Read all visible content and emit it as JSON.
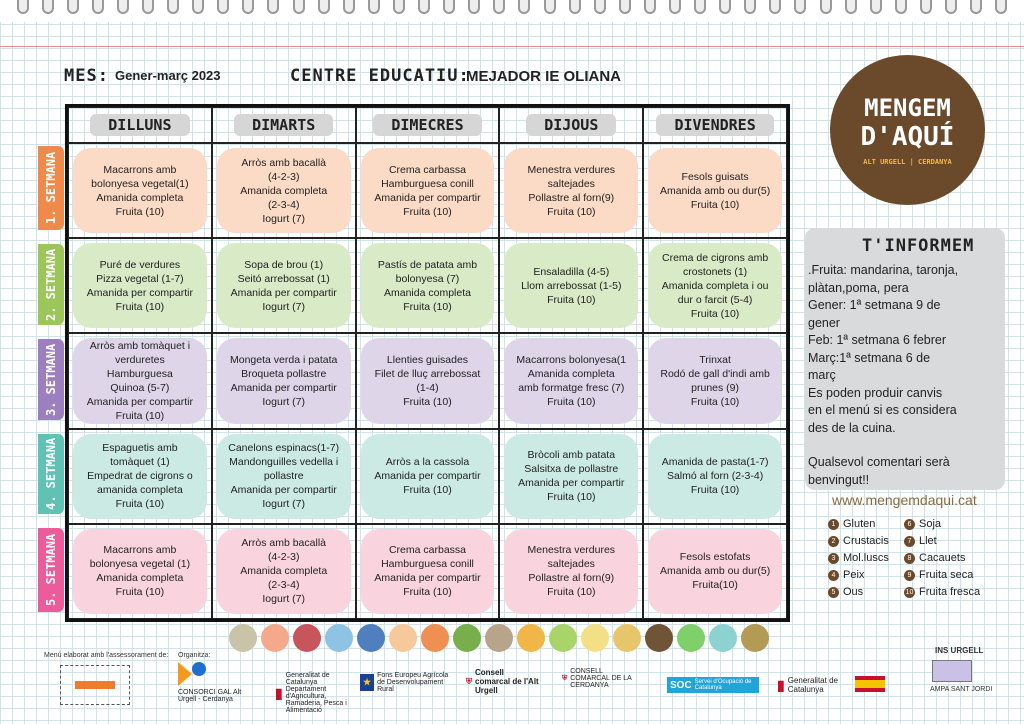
{
  "header": {
    "month_label": "MES:",
    "month": "Gener-març 2023",
    "centre_label": "CENTRE EDUCATIU:",
    "centre": "MEJADOR IE OLIANA"
  },
  "days": [
    "DILLUNS",
    "DIMARTS",
    "DIMECRES",
    "DIJOUS",
    "DIVENDRES"
  ],
  "weeks": [
    {
      "label": "1. SETMANA",
      "color": "#f08a4b",
      "bg": "#fbdac6",
      "cells": [
        [
          "Macarrons amb",
          "bolonyesa vegetal(1)",
          "Amanida completa",
          "Fruita (10)"
        ],
        [
          "Arròs amb bacallà",
          "(4-2-3)",
          "Amanida completa",
          "(2-3-4)",
          "Iogurt (7)"
        ],
        [
          "Crema carbassa",
          "Hamburguesa conill",
          "Amanida per compartir",
          "Fruita (10)"
        ],
        [
          "Menestra verdures",
          "saltejades",
          "Pollastre al forn(9)",
          "Fruita (10)"
        ],
        [
          "Fesols guisats",
          "Amanida amb ou dur(5)",
          "Fruita (10)"
        ]
      ]
    },
    {
      "label": "2. SETMANA",
      "color": "#9cc55a",
      "bg": "#d8eac6",
      "cells": [
        [
          "Puré de verdures",
          "Pizza vegetal (1-7)",
          "Amanida per compartir",
          "Fruita (10)"
        ],
        [
          "Sopa de brou (1)",
          "Seitó arrebossat (1)",
          "Amanida per compartir",
          "Iogurt (7)"
        ],
        [
          "Pastís de patata amb",
          "bolonyesa (7)",
          "Amanida completa",
          "Fruita (10)"
        ],
        [
          "Ensaladilla (4-5)",
          "Llom arrebossat (1-5)",
          "Fruita (10)"
        ],
        [
          "Crema de cigrons amb",
          "crostonets (1)",
          "Amanida completa i ou",
          "dur o farcit (5-4)",
          "Fruita (10)"
        ]
      ]
    },
    {
      "label": "3. SETMANA",
      "color": "#9d7fbf",
      "bg": "#ded5e9",
      "cells": [
        [
          "Arròs amb tomàquet i",
          "verduretes",
          "Hamburguesa",
          "Quinoa (5-7)",
          "Amanida per compartir",
          "Fruita (10)"
        ],
        [
          "Mongeta verda i patata",
          "Broqueta pollastre",
          "Amanida per compartir",
          "Iogurt (7)"
        ],
        [
          "Llenties guisades",
          "Filet de lluç arrebossat",
          "(1-4)",
          "Fruita (10)"
        ],
        [
          "Macarrons bolonyesa(1",
          "Amanida completa",
          "amb formatge fresc (7)",
          "Fruita (10)"
        ],
        [
          "Trinxat",
          "Rodó de gall d'indi amb",
          "prunes (9)",
          "Fruita (10)"
        ]
      ]
    },
    {
      "label": "4. SETMANA",
      "color": "#5fc2b4",
      "bg": "#cbeae4",
      "cells": [
        [
          "Espaguetis amb",
          "tomàquet (1)",
          "Empedrat de cigrons o",
          "amanida completa",
          "Fruita (10)"
        ],
        [
          "Canelons espinacs(1-7)",
          "Mandonguilles vedella i",
          "pollastre",
          "Amanida per compartir",
          "Iogurt (7)"
        ],
        [
          "Arròs a la cassola",
          "Amanida per compartir",
          "Fruita (10)"
        ],
        [
          "Bròcoli amb patata",
          "Salsitxa de pollastre",
          "Amanida per compartir",
          "Fruita (10)"
        ],
        [
          "Amanida de pasta(1-7)",
          "Salmó al forn (2-3-4)",
          "Fruita (10)"
        ]
      ]
    },
    {
      "label": "5. SETMANA",
      "color": "#ec5b9a",
      "bg": "#f9d4de",
      "cells": [
        [
          "Macarrons amb",
          "bolonyesa vegetal (1)",
          "Amanida completa",
          "Fruita (10)"
        ],
        [
          "Arròs amb bacallà",
          "(4-2-3)",
          "Amanida completa",
          "(2-3-4)",
          "Iogurt (7)"
        ],
        [
          "Crema carbassa",
          "Hamburguesa conill",
          "Amanida per compartir",
          "Fruita (10)"
        ],
        [
          "Menestra verdures",
          "saltejades",
          "Pollastre al forn(9)",
          "Fruita (10)"
        ],
        [
          "Fesols estofats",
          "Amanida amb ou dur(5)",
          "Fruita(10)"
        ]
      ]
    }
  ],
  "logo": {
    "line1": "MENGEM",
    "line2": "D'AQUÍ",
    "tagline": "ALT URGELL | CERDANYA"
  },
  "info": {
    "title": "T'INFORMEM",
    "lines": [
      ".Fruita: mandarina, taronja,",
      "plàtan,poma, pera",
      "Gener: 1ª setmana  9 de",
      "gener",
      "Feb: 1ª setmana 6 febrer",
      "Març:1ª setmana  6 de",
      "març",
      "Es poden produir canvis",
      "en el menú si es considera",
      "des de la cuina.",
      "",
      "Qualsevol comentari serà",
      "benvingut!!"
    ],
    "website": "www.mengemdaqui.cat"
  },
  "allergens": [
    {
      "n": "1",
      "label": "Gluten"
    },
    {
      "n": "6",
      "label": "Soja"
    },
    {
      "n": "2",
      "label": "Crustacis"
    },
    {
      "n": "7",
      "label": "Llet"
    },
    {
      "n": "3",
      "label": "Mol.luscs"
    },
    {
      "n": "8",
      "label": "Cacauets"
    },
    {
      "n": "4",
      "label": "Peix"
    },
    {
      "n": "9",
      "label": "Fruita seca"
    },
    {
      "n": "5",
      "label": "Ous"
    },
    {
      "n": "10",
      "label": "Fruita fresca"
    }
  ],
  "food_icon_colors": [
    "#c9c3a8",
    "#f4a98a",
    "#c8555b",
    "#8fc3e3",
    "#4f7fbf",
    "#f6c99a",
    "#ef8f52",
    "#79ae4c",
    "#b8a48a",
    "#f0b748",
    "#a9d46a",
    "#f3df86",
    "#e7c56a",
    "#6f5436",
    "#7fcf6a",
    "#8dd2d0",
    "#b39a55"
  ],
  "footer": {
    "advice": "Menú elaborat amb l'assessorament de:",
    "organitza": "Organitza:",
    "consorci": "CONSORCI GAL Alt Urgell - Cerdanya",
    "gencat_dept": "Generalitat de Catalunya Departament d'Agricultura, Ramaderia, Pesca i Alimentació",
    "feader": "Fons Europeu Agrícola de Desenvolupament Rural",
    "consell": "Consell comarcal de l'Alt Urgell",
    "ajuntament": "CONSELL COMARCAL DE LA CERDANYA",
    "soc": "SOC",
    "soc_text": "Servei d'Ocupació de Catalunya",
    "generalitat": "Generalitat de Catalunya",
    "ins": "INS URGELL",
    "amps": "AMPA SANT JORDI"
  }
}
